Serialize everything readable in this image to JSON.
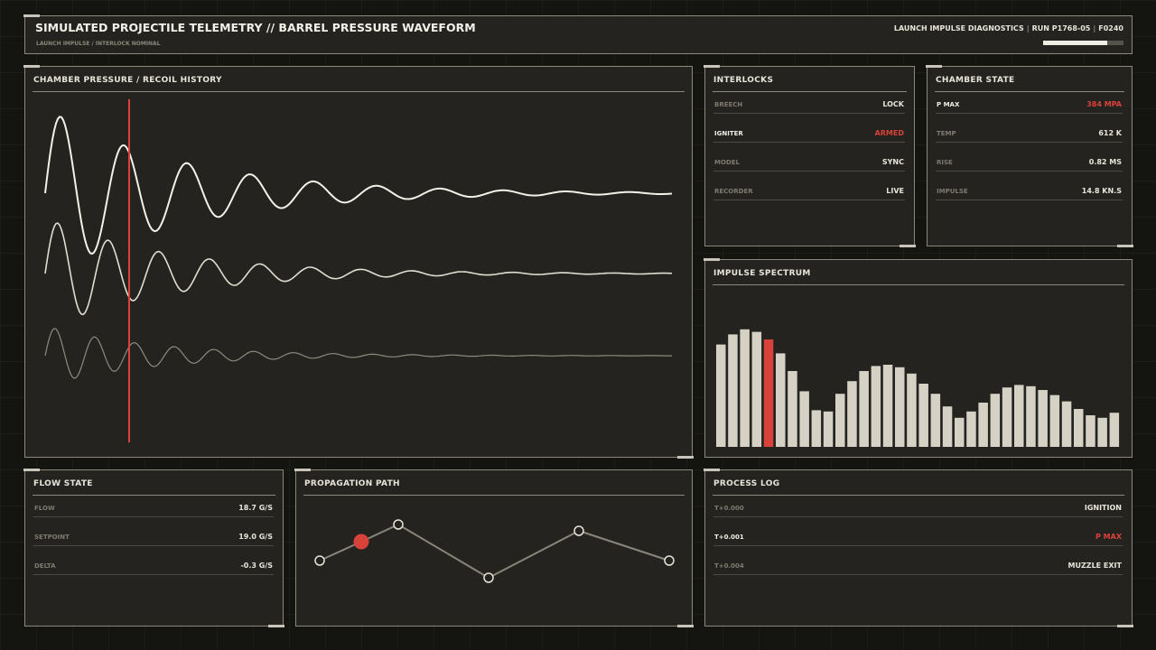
{
  "header": {
    "title": "SIMULATED PROJECTILE TELEMETRY // BARREL PRESSURE WAVEFORM",
    "subtitle": "LAUNCH IMPULSE / INTERLOCK NOMINAL",
    "meta": [
      "LAUNCH IMPULSE DIAGNOSTICS",
      "RUN P1768-05",
      "F0240"
    ],
    "progress": 0.8
  },
  "waveform": {
    "title": "CHAMBER PRESSURE / RECOIL HISTORY",
    "cursor_color": "#d9423a"
  },
  "interlocks": {
    "title": "INTERLOCKS",
    "rows": [
      {
        "key": "BREECH",
        "value": "LOCK",
        "highlight": false
      },
      {
        "key": "IGNITER",
        "value": "ARMED",
        "highlight": true
      },
      {
        "key": "MODEL",
        "value": "SYNC",
        "highlight": false
      },
      {
        "key": "RECORDER",
        "value": "LIVE",
        "highlight": false
      }
    ]
  },
  "chamber_state": {
    "title": "CHAMBER STATE",
    "rows": [
      {
        "key": "P MAX",
        "value": "384 MPA",
        "highlight": true
      },
      {
        "key": "TEMP",
        "value": "612 K",
        "highlight": false
      },
      {
        "key": "RISE",
        "value": "0.82 MS",
        "highlight": false
      },
      {
        "key": "IMPULSE",
        "value": "14.8 KN.S",
        "highlight": false
      }
    ]
  },
  "spectrum": {
    "title": "IMPULSE SPECTRUM",
    "highlight_index": 4,
    "bar_color": "#d5d1c5",
    "highlight_color": "#d9423a"
  },
  "flow_state": {
    "title": "FLOW STATE",
    "rows": [
      {
        "key": "FLOW",
        "value": "18.7 G/S",
        "highlight": false
      },
      {
        "key": "SETPOINT",
        "value": "19.0 G/S",
        "highlight": false
      },
      {
        "key": "DELTA",
        "value": "-0.3 G/S",
        "highlight": false
      }
    ]
  },
  "propagation": {
    "title": "PROPAGATION PATH",
    "active_index": 1
  },
  "process_log": {
    "title": "PROCESS LOG",
    "rows": [
      {
        "key": "T+0.000",
        "value": "IGNITION",
        "highlight": false
      },
      {
        "key": "T+0.001",
        "value": "P MAX",
        "highlight": true
      },
      {
        "key": "T+0.004",
        "value": "MUZZLE EXIT",
        "highlight": false
      }
    ]
  },
  "colors": {
    "accent": "#d9423a",
    "panel": "#24231f",
    "border": "#8c887d",
    "text": "#e8e4da"
  }
}
